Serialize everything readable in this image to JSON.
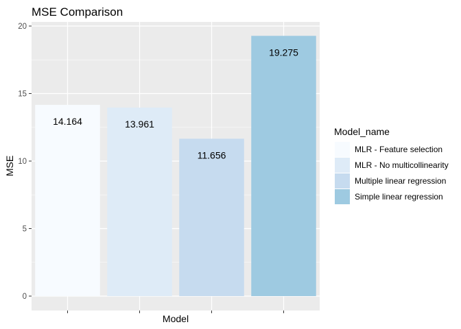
{
  "chart_data": {
    "type": "bar",
    "title": "MSE Comparison",
    "xlabel": "Model",
    "ylabel": "MSE",
    "categories": [
      "MLR - Feature selection",
      "MLR - No multicollinearity",
      "Multiple linear regression",
      "Simple linear regression"
    ],
    "values": [
      14.164,
      13.961,
      11.656,
      19.275
    ],
    "data_labels": [
      "14.164",
      "13.961",
      "11.656",
      "19.275"
    ],
    "colors": [
      "#f7fbff",
      "#deebf7",
      "#c6dbef",
      "#9ecae1"
    ],
    "ylim": [
      0,
      20
    ],
    "yticks": [
      0,
      5,
      10,
      15,
      20
    ],
    "xtick_labels_shown": false,
    "grid": true,
    "panel_background": "#ebebeb",
    "grid_color": "#ffffff",
    "legend": {
      "title": "Model_name",
      "placement": "right",
      "entries": [
        "MLR - Feature selection",
        "MLR - No multicollinearity",
        "Multiple linear regression",
        "Simple linear regression"
      ]
    }
  }
}
